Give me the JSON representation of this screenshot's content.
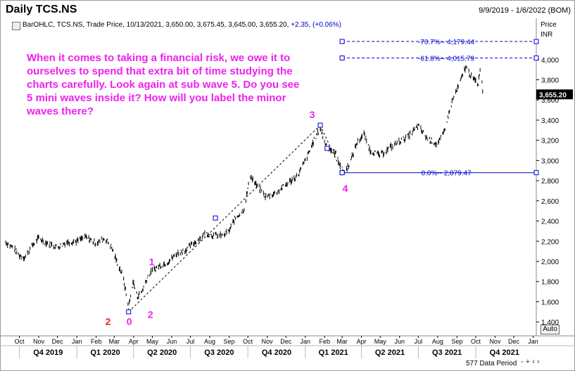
{
  "header": {
    "title": "Daily TCS.NS",
    "date_range": "9/9/2019 - 1/6/2022 (BOM)",
    "ohlc_text": "BarOHLC, TCS.NS, Trade Price, 10/13/2021, 3,650.00, 3,675.45, 3,645.00, 3,655.20,",
    "change_text": "+2.35, (+0.06%)"
  },
  "annotation": {
    "text": "When it comes to taking a financial risk, we owe it to ourselves to spend that extra bit of time studying the charts carefully. Look again at sub wave 5. Do you see 5 mini waves inside it? How will you label the minor waves there?"
  },
  "axis": {
    "price_label": "Price",
    "unit_label": "INR",
    "current_price_label": "3,655.20",
    "auto_label": "Auto",
    "data_period_label": "577 Data Period",
    "zoom_text": "- + ‹ ›"
  },
  "colors": {
    "price_bars": "#000000",
    "fib_lines": "#0000cc",
    "wave_labels_pink": "#ee22ee",
    "wave_labels_red": "#ee2222",
    "annotation_text": "#ee22ee"
  },
  "chart_data": {
    "type": "bar",
    "title": "Daily TCS.NS",
    "ylabel": "Price INR",
    "ylim": [
      1300,
      4300
    ],
    "yticks": [
      1400,
      1600,
      1800,
      2000,
      2200,
      2400,
      2600,
      2800,
      3000,
      3200,
      3400,
      3600,
      3800,
      4000
    ],
    "ytick_labels": [
      "1,400",
      "1,600",
      "1,800",
      "2,000",
      "2,200",
      "2,400",
      "2,600",
      "2,800",
      "3,000",
      "3,200",
      "3,400",
      "3,600",
      "3,800",
      "4,000"
    ],
    "x_start": "2019-09-09",
    "x_end": "2022-01-06",
    "month_ticks": [
      {
        "label": "Oct",
        "date": "2019-10-01"
      },
      {
        "label": "Nov",
        "date": "2019-11-01"
      },
      {
        "label": "Dec",
        "date": "2019-12-01"
      },
      {
        "label": "Jan",
        "date": "2020-01-01"
      },
      {
        "label": "Feb",
        "date": "2020-02-01"
      },
      {
        "label": "Mar",
        "date": "2020-03-01"
      },
      {
        "label": "Apr",
        "date": "2020-04-01"
      },
      {
        "label": "May",
        "date": "2020-05-01"
      },
      {
        "label": "Jun",
        "date": "2020-06-01"
      },
      {
        "label": "Jul",
        "date": "2020-07-01"
      },
      {
        "label": "Aug",
        "date": "2020-08-01"
      },
      {
        "label": "Sep",
        "date": "2020-09-01"
      },
      {
        "label": "Oct",
        "date": "2020-10-01"
      },
      {
        "label": "Nov",
        "date": "2020-11-01"
      },
      {
        "label": "Dec",
        "date": "2020-12-01"
      },
      {
        "label": "Jan",
        "date": "2021-01-01"
      },
      {
        "label": "Feb",
        "date": "2021-02-01"
      },
      {
        "label": "Mar",
        "date": "2021-03-01"
      },
      {
        "label": "Apr",
        "date": "2021-04-01"
      },
      {
        "label": "May",
        "date": "2021-05-01"
      },
      {
        "label": "Jun",
        "date": "2021-06-01"
      },
      {
        "label": "Jul",
        "date": "2021-07-01"
      },
      {
        "label": "Aug",
        "date": "2021-08-01"
      },
      {
        "label": "Sep",
        "date": "2021-09-01"
      },
      {
        "label": "Oct",
        "date": "2021-10-01"
      },
      {
        "label": "Nov",
        "date": "2021-11-01"
      },
      {
        "label": "Dec",
        "date": "2021-12-01"
      },
      {
        "label": "Jan",
        "date": "2022-01-01"
      }
    ],
    "quarter_ticks": [
      {
        "label": "Q4 2019",
        "date": "2019-10-01",
        "end": "2020-01-01"
      },
      {
        "label": "Q1 2020",
        "date": "2020-01-01",
        "end": "2020-04-01"
      },
      {
        "label": "Q2 2020",
        "date": "2020-04-01",
        "end": "2020-07-01"
      },
      {
        "label": "Q3 2020",
        "date": "2020-07-01",
        "end": "2020-10-01"
      },
      {
        "label": "Q4 2020",
        "date": "2020-10-01",
        "end": "2021-01-01"
      },
      {
        "label": "Q1 2021",
        "date": "2021-01-01",
        "end": "2021-04-01"
      },
      {
        "label": "Q2 2021",
        "date": "2021-04-01",
        "end": "2021-07-01"
      },
      {
        "label": "Q3 2021",
        "date": "2021-07-01",
        "end": "2021-10-01"
      },
      {
        "label": "Q4 2021",
        "date": "2021-10-01",
        "end": "2022-01-01"
      }
    ],
    "price_path": [
      [
        "2019-09-09",
        2190
      ],
      [
        "2019-09-20",
        2140
      ],
      [
        "2019-10-01",
        2060
      ],
      [
        "2019-10-10",
        2040
      ],
      [
        "2019-10-22",
        2160
      ],
      [
        "2019-11-01",
        2230
      ],
      [
        "2019-11-15",
        2180
      ],
      [
        "2019-12-01",
        2140
      ],
      [
        "2019-12-15",
        2190
      ],
      [
        "2020-01-01",
        2200
      ],
      [
        "2020-01-15",
        2240
      ],
      [
        "2020-02-01",
        2180
      ],
      [
        "2020-02-15",
        2230
      ],
      [
        "2020-02-25",
        2150
      ],
      [
        "2020-03-05",
        2000
      ],
      [
        "2020-03-15",
        1850
      ],
      [
        "2020-03-24",
        1540
      ],
      [
        "2020-03-31",
        1800
      ],
      [
        "2020-04-07",
        1650
      ],
      [
        "2020-04-14",
        1700
      ],
      [
        "2020-04-25",
        1870
      ],
      [
        "2020-05-10",
        1950
      ],
      [
        "2020-05-25",
        1990
      ],
      [
        "2020-06-10",
        2080
      ],
      [
        "2020-06-25",
        2120
      ],
      [
        "2020-07-10",
        2200
      ],
      [
        "2020-07-25",
        2280
      ],
      [
        "2020-08-05",
        2260
      ],
      [
        "2020-08-20",
        2250
      ],
      [
        "2020-09-01",
        2300
      ],
      [
        "2020-09-10",
        2420
      ],
      [
        "2020-09-25",
        2520
      ],
      [
        "2020-10-05",
        2850
      ],
      [
        "2020-10-15",
        2750
      ],
      [
        "2020-10-30",
        2640
      ],
      [
        "2020-11-15",
        2680
      ],
      [
        "2020-12-01",
        2760
      ],
      [
        "2020-12-20",
        2850
      ],
      [
        "2021-01-05",
        3050
      ],
      [
        "2021-01-15",
        3200
      ],
      [
        "2021-01-25",
        3320
      ],
      [
        "2021-02-01",
        3180
      ],
      [
        "2021-02-10",
        3110
      ],
      [
        "2021-02-20",
        3060
      ],
      [
        "2021-02-28",
        2920
      ],
      [
        "2021-03-05",
        2880
      ],
      [
        "2021-03-15",
        3000
      ],
      [
        "2021-03-25",
        3180
      ],
      [
        "2021-04-05",
        3260
      ],
      [
        "2021-04-15",
        3100
      ],
      [
        "2021-05-01",
        3050
      ],
      [
        "2021-05-15",
        3120
      ],
      [
        "2021-06-01",
        3190
      ],
      [
        "2021-06-15",
        3240
      ],
      [
        "2021-07-01",
        3340
      ],
      [
        "2021-07-15",
        3220
      ],
      [
        "2021-08-01",
        3160
      ],
      [
        "2021-08-10",
        3260
      ],
      [
        "2021-08-25",
        3600
      ],
      [
        "2021-09-05",
        3760
      ],
      [
        "2021-09-15",
        3930
      ],
      [
        "2021-09-25",
        3820
      ],
      [
        "2021-10-05",
        3760
      ],
      [
        "2021-10-08",
        3920
      ],
      [
        "2021-10-13",
        3655
      ]
    ],
    "fib_levels": [
      {
        "label": "-70.7%-- 4,179.44",
        "value": 4179.44
      },
      {
        "label": "-61.8%-- 4,015.79",
        "value": 4015.79
      },
      {
        "label": "0.0%-- 2,879.47",
        "value": 2879.47
      }
    ],
    "fib_start_date": "2021-03-01",
    "trend_line": [
      [
        "2020-03-24",
        1500
      ],
      [
        "2021-01-25",
        3350
      ]
    ],
    "trend_handles": [
      [
        "2020-03-24",
        1500
      ],
      [
        "2020-08-10",
        2430
      ],
      [
        "2021-01-25",
        3350
      ],
      [
        "2021-02-05",
        3120
      ],
      [
        "2021-03-01",
        2880
      ]
    ],
    "wave_labels": [
      {
        "text": "0",
        "date": "2020-03-25",
        "price": 1370,
        "color": "pink"
      },
      {
        "text": "1",
        "date": "2020-04-30",
        "price": 1960,
        "color": "pink"
      },
      {
        "text": "2",
        "date": "2020-04-28",
        "price": 1440,
        "color": "pink"
      },
      {
        "text": "3",
        "date": "2021-01-12",
        "price": 3420,
        "color": "pink"
      },
      {
        "text": "4",
        "date": "2021-03-06",
        "price": 2690,
        "color": "pink"
      },
      {
        "text": "2",
        "date": "2020-02-20",
        "price": 1370,
        "color": "red"
      }
    ]
  }
}
